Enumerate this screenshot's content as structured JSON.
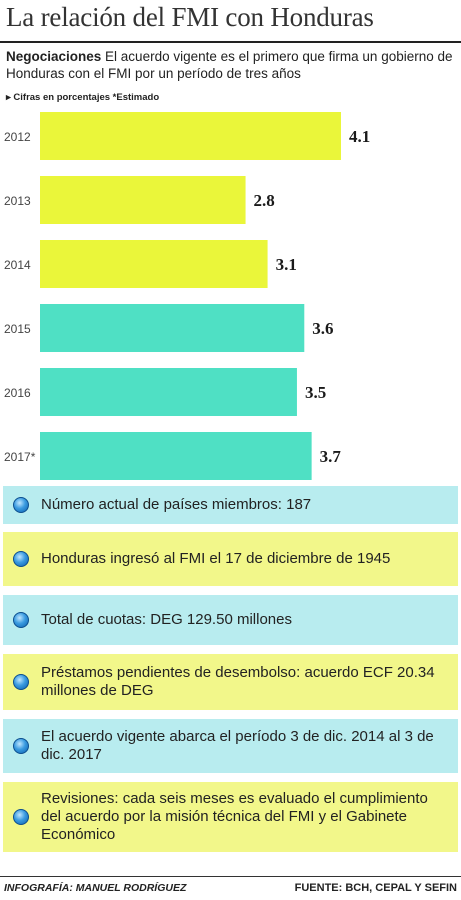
{
  "title": "La relación del FMI con Honduras",
  "lead": {
    "bold": "Negociaciones",
    "text": " El acuerdo vigente es el primero que firma un gobierno de Honduras con el FMI por un período de tres años"
  },
  "note": "▸ Cifras en porcentajes *Estimado",
  "chart_data": {
    "type": "bar",
    "orientation": "horizontal",
    "categories": [
      "2012",
      "2013",
      "2014",
      "2015",
      "2016",
      "2017*"
    ],
    "values": [
      4.1,
      2.8,
      3.1,
      3.6,
      3.5,
      3.7
    ],
    "value_labels": [
      "4.1",
      "2.8",
      "3.1",
      "3.6",
      "3.5",
      "3.7"
    ],
    "xlim": [
      0,
      4.1
    ],
    "grid": false,
    "legend": "none",
    "bar_colors": [
      "#eaf63a",
      "#eaf63a",
      "#eaf63a",
      "#4fe0c4",
      "#4fe0c4",
      "#4fe0c4"
    ]
  },
  "facts": [
    {
      "text": "Número actual de países miembros: 187",
      "color": "#b8ecef"
    },
    {
      "text": "Honduras ingresó al FMI el 17 de diciembre de 1945",
      "color": "#f2f78a"
    },
    {
      "text": "Total de cuotas: DEG 129.50 millones",
      "color": "#b8ecef"
    },
    {
      "text": "Préstamos pendientes de desembolso: acuerdo ECF 20.34 millones de DEG",
      "color": "#f2f78a"
    },
    {
      "text": "El acuerdo vigente abarca el período 3 de dic. 2014 al 3 de dic. 2017",
      "color": "#b8ecef"
    },
    {
      "text": "Revisiones: cada seis meses es evaluado el cumplimiento del acuerdo por la misión técnica del FMI y el Gabinete Económico",
      "color": "#f2f78a"
    }
  ],
  "credit": "INFOGRAFÍA: MANUEL RODRÍGUEZ",
  "source": "FUENTE: BCH, CEPAL Y SEFIN"
}
